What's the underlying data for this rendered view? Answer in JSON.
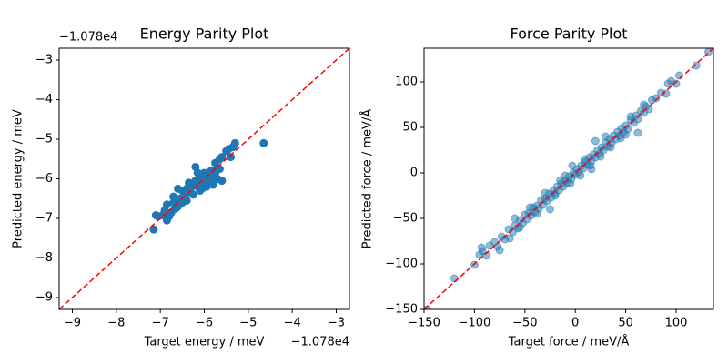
{
  "chart_data": [
    {
      "type": "scatter",
      "title": "Energy Parity Plot",
      "x_label": "Target energy / meV",
      "y_label": "Predicted energy / meV",
      "x_offset": "−1.078e4",
      "y_offset": "−1.078e4",
      "xlim": [
        -9.3,
        -2.7
      ],
      "ylim": [
        -9.3,
        -2.7
      ],
      "xticks": [
        {
          "value": -9,
          "label": "−9"
        },
        {
          "value": -8,
          "label": "−8"
        },
        {
          "value": -7,
          "label": "−7"
        },
        {
          "value": -6,
          "label": "−6"
        },
        {
          "value": -5,
          "label": "−5"
        },
        {
          "value": -4,
          "label": "−4"
        },
        {
          "value": -3,
          "label": "−3"
        }
      ],
      "yticks": [
        {
          "value": -9,
          "label": "−9"
        },
        {
          "value": -8,
          "label": "−8"
        },
        {
          "value": -7,
          "label": "−7"
        },
        {
          "value": -6,
          "label": "−6"
        },
        {
          "value": -5,
          "label": "−5"
        },
        {
          "value": -4,
          "label": "−4"
        },
        {
          "value": -3,
          "label": "−3"
        }
      ],
      "color": "#1f77b4",
      "alpha": 1,
      "identity_line": true,
      "identity_line_color": "#ff0000",
      "x": [
        -7.15,
        -7.1,
        -6.95,
        -6.85,
        -6.85,
        -6.8,
        -6.75,
        -6.7,
        -6.65,
        -6.6,
        -6.55,
        -6.5,
        -6.5,
        -6.45,
        -6.4,
        -6.4,
        -6.35,
        -6.3,
        -6.3,
        -6.25,
        -6.2,
        -6.2,
        -6.15,
        -6.15,
        -6.1,
        -6.1,
        -6.05,
        -6.05,
        -6.0,
        -6.0,
        -5.95,
        -5.95,
        -5.9,
        -5.9,
        -5.85,
        -5.85,
        -5.8,
        -5.8,
        -5.75,
        -5.75,
        -5.7,
        -5.7,
        -5.65,
        -5.65,
        -5.6,
        -5.6,
        -5.5,
        -5.45,
        -5.4,
        -5.35,
        -5.3,
        -4.65,
        -6.6,
        -6.7,
        -6.9,
        -7.05
      ],
      "y": [
        -7.28,
        -6.92,
        -6.92,
        -6.65,
        -7.05,
        -6.95,
        -6.85,
        -6.6,
        -6.75,
        -6.7,
        -6.5,
        -6.6,
        -6.3,
        -6.45,
        -6.25,
        -6.55,
        -6.1,
        -6.35,
        -6.2,
        -6.4,
        -5.7,
        -6.05,
        -6.2,
        -5.85,
        -6.3,
        -6.0,
        -5.95,
        -6.25,
        -6.1,
        -5.85,
        -6.05,
        -6.2,
        -5.9,
        -6.1,
        -5.8,
        -6.0,
        -6.15,
        -5.95,
        -5.85,
        -5.6,
        -5.75,
        -6.0,
        -5.5,
        -5.75,
        -5.45,
        -6.05,
        -5.3,
        -5.25,
        -5.45,
        -5.2,
        -5.1,
        -5.1,
        -6.25,
        -6.45,
        -6.8,
        -6.95
      ]
    },
    {
      "type": "scatter",
      "title": "Force Parity Plot",
      "x_label": "Target force / meV/Å",
      "y_label": "Predicted force / meV/Å",
      "xlim": [
        -150,
        137
      ],
      "ylim": [
        -150,
        137
      ],
      "xticks": [
        {
          "value": -150,
          "label": "−150"
        },
        {
          "value": -100,
          "label": "−100"
        },
        {
          "value": -50,
          "label": "−50"
        },
        0,
        50,
        100
      ],
      "yticks": [
        {
          "value": -150,
          "label": "−150"
        },
        {
          "value": -100,
          "label": "−100"
        },
        {
          "value": -50,
          "label": "−50"
        },
        0,
        50,
        100
      ],
      "color": "#1f77b4",
      "alpha": 0.5,
      "identity_line": true,
      "identity_line_color": "#ff0000",
      "x": [
        -147,
        -120,
        -100,
        -95,
        -92,
        -88,
        -85,
        -80,
        -77,
        -73,
        -70,
        -66,
        -62,
        -60,
        -57,
        -55,
        -52,
        -50,
        -48,
        -46,
        -44,
        -42,
        -40,
        -38,
        -36,
        -34,
        -32,
        -30,
        -28,
        -26,
        -24,
        -22,
        -20,
        -18,
        -16,
        -14,
        -12,
        -10,
        -8,
        -6,
        -4,
        -2,
        0,
        2,
        4,
        6,
        8,
        10,
        12,
        14,
        16,
        18,
        20,
        22,
        24,
        26,
        28,
        30,
        32,
        34,
        36,
        38,
        40,
        42,
        44,
        46,
        48,
        50,
        52,
        55,
        58,
        60,
        62,
        65,
        68,
        70,
        73,
        76,
        80,
        85,
        90,
        95,
        100,
        103,
        120,
        132,
        -93,
        -55,
        -45,
        -30,
        -20,
        -10,
        -5,
        5,
        10,
        20,
        25,
        35,
        45,
        55,
        62,
        -75,
        -65,
        -38,
        -15,
        15,
        30,
        50,
        68,
        92,
        -25,
        -3,
        16,
        -60
      ],
      "y": [
        -150,
        -116,
        -101,
        -90,
        -86,
        -91,
        -80,
        -76,
        -81,
        -70,
        -73,
        -62,
        -65,
        -58,
        -61,
        -52,
        -55,
        -46,
        -51,
        -44,
        -47,
        -38,
        -43,
        -36,
        -39,
        -30,
        -35,
        -28,
        -31,
        -23,
        -27,
        -20,
        -23,
        -15,
        -19,
        -12,
        -15,
        -8,
        -11,
        -4,
        -7,
        0,
        -2,
        4,
        1,
        8,
        5,
        12,
        9,
        17,
        13,
        20,
        17,
        25,
        21,
        28,
        25,
        33,
        29,
        37,
        33,
        41,
        37,
        45,
        41,
        49,
        45,
        52,
        48,
        58,
        55,
        63,
        59,
        68,
        66,
        73,
        70,
        80,
        82,
        88,
        87,
        101,
        98,
        107,
        118,
        133,
        -82,
        -60,
        -38,
        -22,
        -25,
        -3,
        -12,
        -3,
        15,
        35,
        18,
        28,
        38,
        62,
        44,
        -85,
        -72,
        -45,
        -8,
        8,
        40,
        42,
        75,
        98,
        -40,
        8,
        4,
        -50
      ]
    }
  ]
}
